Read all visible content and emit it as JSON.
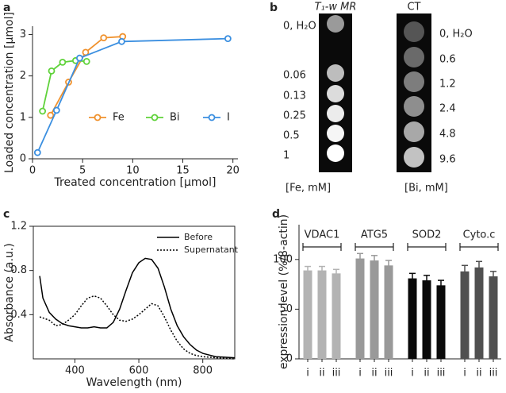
{
  "chart_data": [
    {
      "panel": "a",
      "type": "scatter_line",
      "xlabel": "Treated concentration [µmol]",
      "ylabel": "Loaded concentration [µmol]",
      "xlim": [
        0,
        20.5
      ],
      "xticks": [
        0,
        5,
        10,
        15,
        20
      ],
      "ylim": [
        0,
        3.2
      ],
      "yticks": [
        0,
        1,
        2,
        3
      ],
      "legend": "center right",
      "series": [
        {
          "name": "Fe",
          "color": "#f0922e",
          "x": [
            1.8,
            3.6,
            5.3,
            7.1,
            9.0
          ],
          "values": [
            1.05,
            1.85,
            2.57,
            2.92,
            2.95
          ]
        },
        {
          "name": "Bi",
          "color": "#5fd23a",
          "x": [
            1.0,
            1.9,
            3.0,
            4.3,
            5.4
          ],
          "values": [
            1.15,
            2.12,
            2.33,
            2.37,
            2.35
          ]
        },
        {
          "name": "I",
          "color": "#3b8fe0",
          "x": [
            0.5,
            2.4,
            4.7,
            8.9,
            19.5
          ],
          "values": [
            0.15,
            1.17,
            2.43,
            2.83,
            2.9
          ]
        }
      ]
    },
    {
      "panel": "b",
      "type": "image",
      "columns": [
        {
          "title": "T₁-w MR",
          "labels": [
            "0, H₂O",
            "0.06",
            "0.13",
            "0.25",
            "0.5",
            "1"
          ],
          "unit": "[Fe, mM]"
        },
        {
          "title": "CT",
          "labels": [
            "0, H₂O",
            "0.6",
            "1.2",
            "2.4",
            "4.8",
            "9.6"
          ],
          "unit": "[Bi, mM]"
        }
      ]
    },
    {
      "panel": "c",
      "type": "line",
      "xlabel": "Wavelength (nm)",
      "ylabel": "Absorbance (a.u.)",
      "xlim": [
        270,
        900
      ],
      "xticks": [
        400,
        600,
        800
      ],
      "ylim": [
        0,
        1.2
      ],
      "yticks": [
        0.4,
        0.8,
        1.2
      ],
      "legend": "upper right",
      "x": [
        290,
        300,
        320,
        340,
        360,
        380,
        400,
        420,
        440,
        460,
        480,
        500,
        520,
        540,
        560,
        580,
        600,
        620,
        640,
        660,
        680,
        700,
        720,
        740,
        760,
        780,
        800,
        840,
        900
      ],
      "series": [
        {
          "name": "Before",
          "color": "#000000",
          "style": "solid",
          "values": [
            0.75,
            0.55,
            0.42,
            0.36,
            0.32,
            0.3,
            0.29,
            0.28,
            0.28,
            0.29,
            0.28,
            0.28,
            0.33,
            0.45,
            0.62,
            0.78,
            0.87,
            0.91,
            0.9,
            0.82,
            0.65,
            0.45,
            0.3,
            0.2,
            0.13,
            0.08,
            0.05,
            0.02,
            0.01
          ]
        },
        {
          "name": "Supernatant",
          "color": "#000000",
          "style": "dotted",
          "values": [
            0.38,
            0.37,
            0.35,
            0.3,
            0.31,
            0.35,
            0.4,
            0.48,
            0.55,
            0.57,
            0.55,
            0.48,
            0.4,
            0.35,
            0.34,
            0.36,
            0.4,
            0.45,
            0.5,
            0.48,
            0.38,
            0.26,
            0.16,
            0.09,
            0.05,
            0.03,
            0.02,
            0.01,
            0.0
          ]
        }
      ]
    },
    {
      "panel": "d",
      "type": "grouped_bar",
      "ylabel": "expression level (%/β-actin)",
      "ylim": [
        0,
        135
      ],
      "yticks": [
        0,
        50,
        100
      ],
      "groups": [
        {
          "name": "VDAC1",
          "color": "#b3b3b3",
          "categories": [
            "i",
            "ii",
            "iii"
          ],
          "values": [
            89,
            89,
            86
          ],
          "errors": [
            4,
            4,
            4
          ]
        },
        {
          "name": "ATG5",
          "color": "#999999",
          "categories": [
            "i",
            "ii",
            "iii"
          ],
          "values": [
            101,
            99,
            94
          ],
          "errors": [
            5,
            5,
            5
          ]
        },
        {
          "name": "SOD2",
          "color": "#0a0a0a",
          "categories": [
            "i",
            "ii",
            "iii"
          ],
          "values": [
            81,
            79,
            74
          ],
          "errors": [
            5,
            5,
            5
          ]
        },
        {
          "name": "Cyto.c",
          "color": "#505050",
          "categories": [
            "i",
            "ii",
            "iii"
          ],
          "values": [
            88,
            92,
            83
          ],
          "errors": [
            6,
            6,
            5
          ]
        }
      ]
    }
  ]
}
